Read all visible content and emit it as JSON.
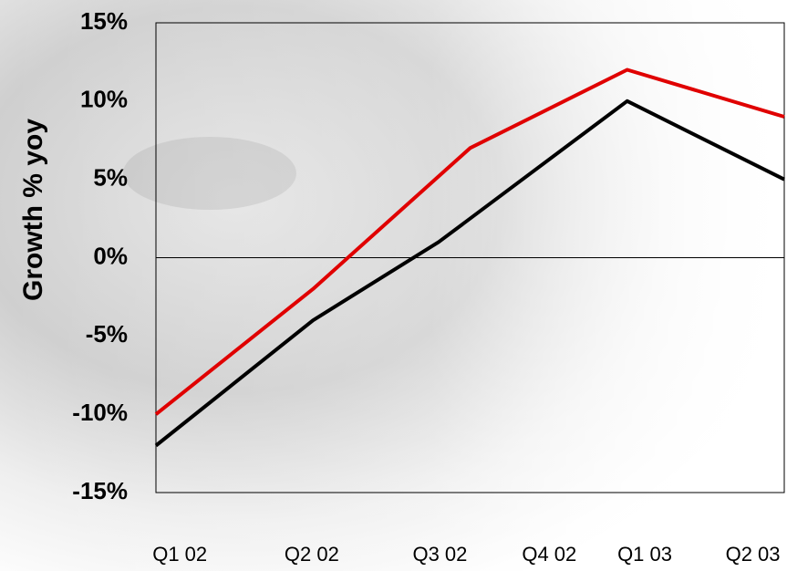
{
  "chart_data": {
    "type": "line",
    "y_label": "Growth % yoy",
    "xlim": [
      0,
      5
    ],
    "xticks": [
      {
        "value": 0.19,
        "label": "Q1 02"
      },
      {
        "value": 1.24,
        "label": "Q2 02"
      },
      {
        "value": 2.26,
        "label": "Q3 02"
      },
      {
        "value": 3.13,
        "label": "Q4 02"
      },
      {
        "value": 3.89,
        "label": "Q1 03"
      },
      {
        "value": 4.75,
        "label": "Q2 03"
      }
    ],
    "ylim": [
      -15,
      15
    ],
    "yticks": [
      {
        "value": -15,
        "label": "-15%"
      },
      {
        "value": -10,
        "label": "-10%"
      },
      {
        "value": -5,
        "label": "-5%"
      },
      {
        "value": 0,
        "label": "0%"
      },
      {
        "value": 5,
        "label": "5%"
      },
      {
        "value": 10,
        "label": "10%"
      },
      {
        "value": 15,
        "label": "15%"
      }
    ],
    "series": [
      {
        "color": "#e00000",
        "x": [
          0,
          1.25,
          2.5,
          3.75,
          5
        ],
        "values": [
          -10,
          -2,
          7,
          12,
          9
        ]
      },
      {
        "color": "#000000",
        "x": [
          0,
          1.25,
          2.25,
          3.75,
          5
        ],
        "values": [
          -12,
          -4,
          1,
          10,
          5
        ]
      }
    ]
  }
}
